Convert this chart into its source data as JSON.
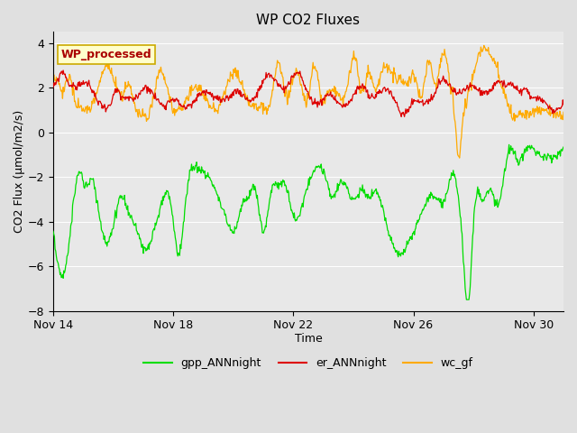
{
  "title": "WP CO2 Fluxes",
  "xlabel": "Time",
  "ylabel": "CO2 Flux (μmol/m2/s)",
  "ylim": [
    -8,
    4.5
  ],
  "yticks": [
    -8,
    -6,
    -4,
    -2,
    0,
    2,
    4
  ],
  "xlim_days": [
    0,
    17
  ],
  "xtick_positions": [
    0,
    4,
    8,
    12,
    16
  ],
  "xtick_labels": [
    "Nov 14",
    "Nov 18",
    "Nov 22",
    "Nov 26",
    "Nov 30"
  ],
  "fig_bg_color": "#e0e0e0",
  "plot_bg_color": "#e8e8e8",
  "colors": {
    "gpp": "#00dd00",
    "er": "#dd0000",
    "wc": "#ffaa00"
  },
  "watermark_text": "WP_processed",
  "watermark_color": "#aa0000",
  "watermark_bg": "#ffffcc",
  "watermark_border": "#ccaa00",
  "grid_color": "#ffffff",
  "n_days": 17,
  "n_pts": 816
}
